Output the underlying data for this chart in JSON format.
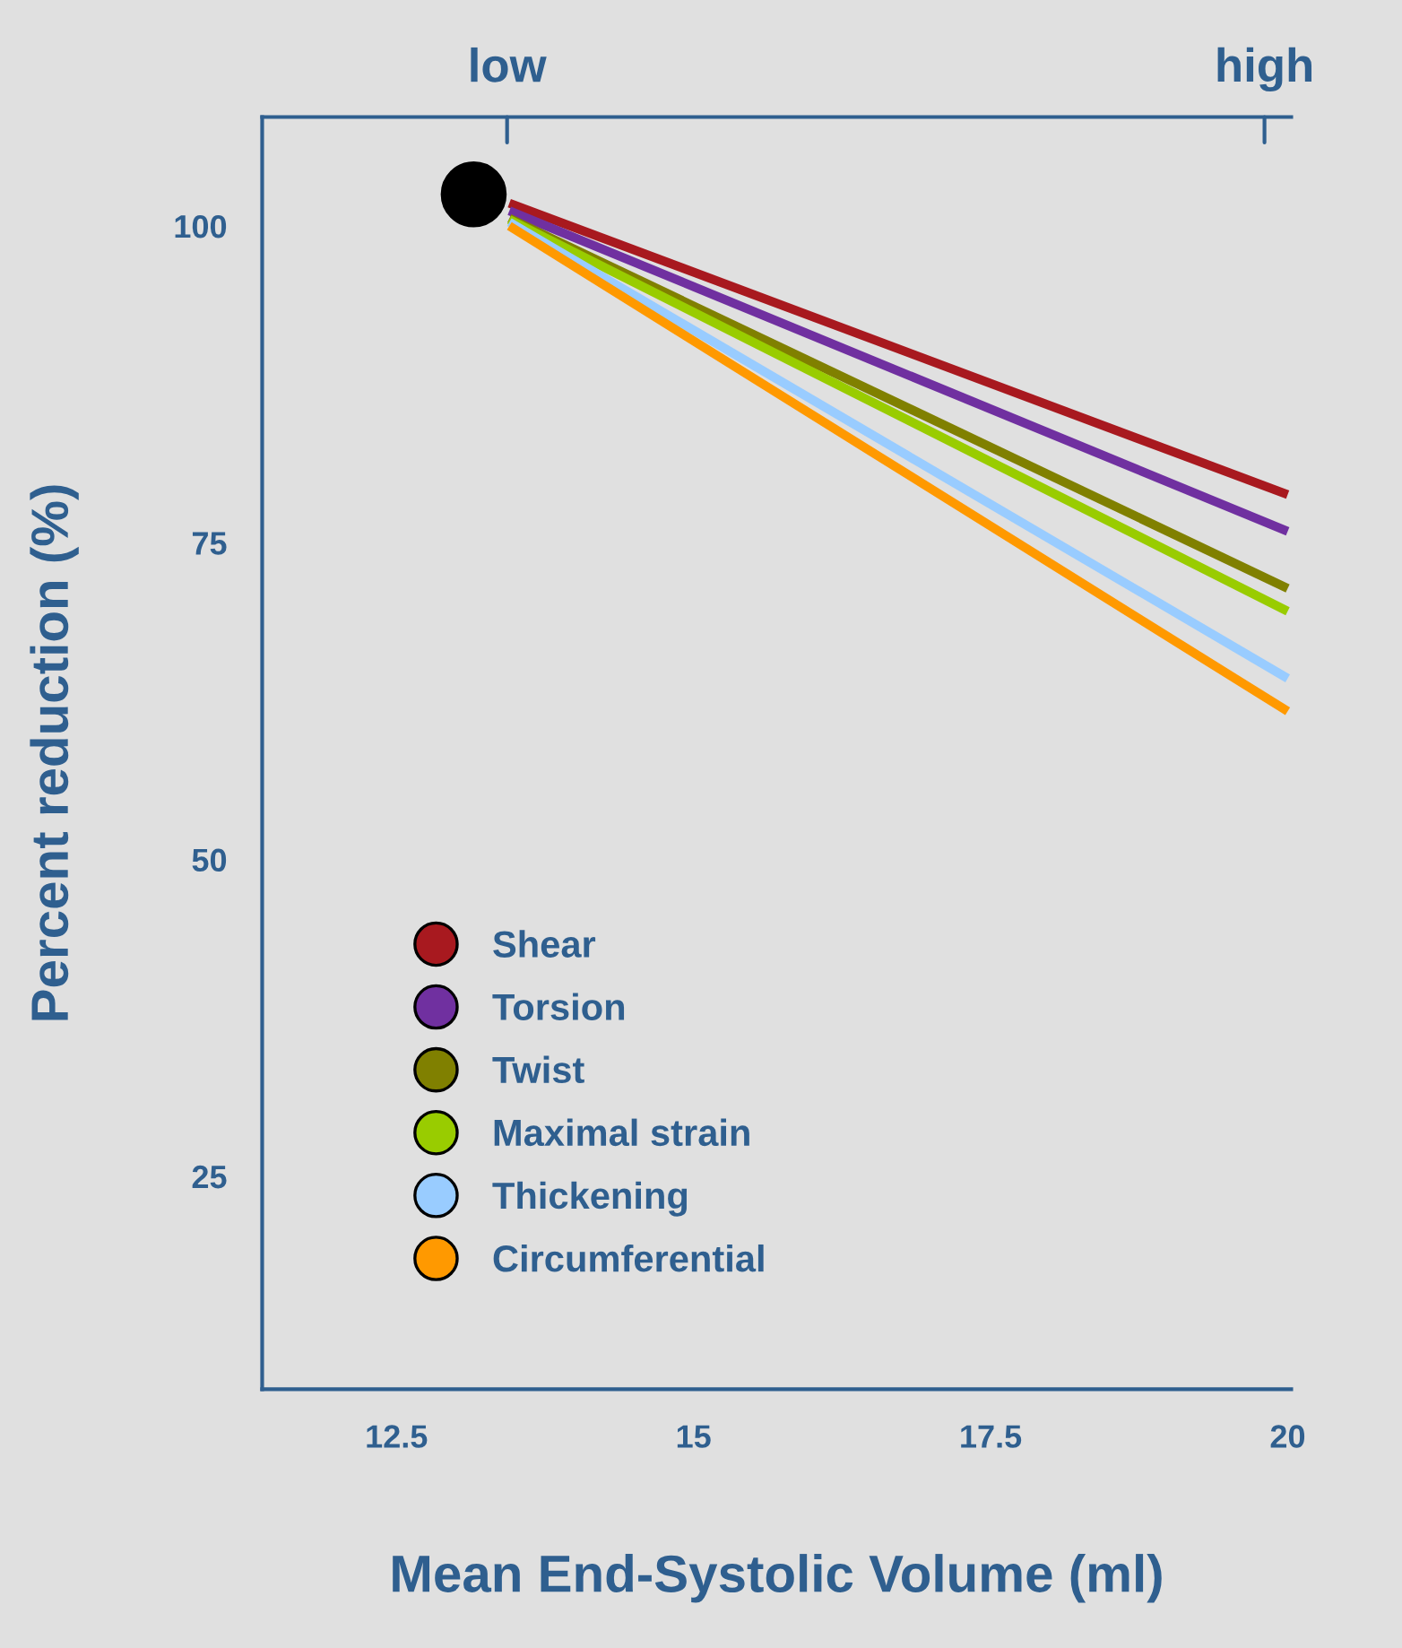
{
  "chart_data": {
    "type": "line",
    "xlabel": "Mean End-Systolic Volume (ml)",
    "ylabel": "Percent reduction (%)",
    "xlim": [
      11.37,
      20.03
    ],
    "xticks": [
      12.5,
      15,
      17.5,
      20
    ],
    "ylim": [
      8.2,
      108.6
    ],
    "yticks": [
      25,
      50,
      75,
      100
    ],
    "annotations": [
      "low",
      "high"
    ],
    "grid": false,
    "legend": "bottom left",
    "marker": "none",
    "line_style": "solid",
    "series": [
      {
        "type": "scatter",
        "color": "#000000",
        "x": [
          13.15
        ],
        "values": [
          102.5
        ],
        "marker": "circle"
      },
      {
        "name": "Shear",
        "color": "#a8191f",
        "x": [
          13.45,
          20.0
        ],
        "values": [
          101.8,
          78.8
        ]
      },
      {
        "name": "Torsion",
        "color": "#7030a0",
        "x": [
          13.45,
          20.0
        ],
        "values": [
          101.2,
          75.9
        ]
      },
      {
        "name": "Twist",
        "color": "#808000",
        "x": [
          13.45,
          20.0
        ],
        "values": [
          100.6,
          71.4
        ]
      },
      {
        "name": "Maximal strain",
        "color": "#99cc00",
        "x": [
          13.45,
          20.0
        ],
        "values": [
          100.5,
          69.6
        ]
      },
      {
        "name": "Thickening",
        "color": "#99ccff",
        "x": [
          13.45,
          20.0
        ],
        "values": [
          100.3,
          64.3
        ]
      },
      {
        "name": "Circumferential",
        "color": "#ff9900",
        "x": [
          13.45,
          20.0
        ],
        "values": [
          100.0,
          61.7
        ]
      }
    ]
  }
}
